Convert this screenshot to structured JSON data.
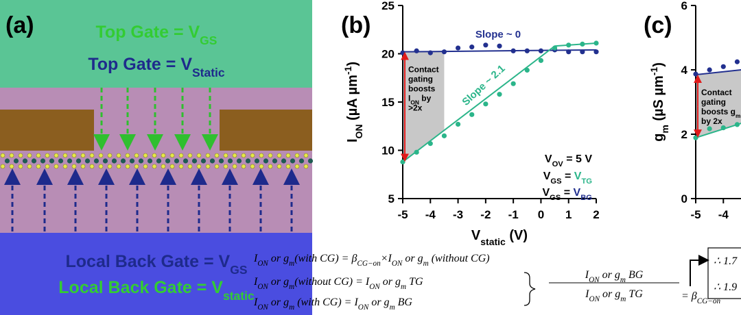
{
  "panel_a": {
    "label": "(a)",
    "top_gate_1": [
      "Top Gate = V",
      "GS"
    ],
    "top_gate_2": [
      "Top Gate = V",
      "Static"
    ],
    "back_gate_1": [
      "Local Back Gate = V",
      "GS"
    ],
    "back_gate_2": [
      "Local Back Gate = V",
      "static"
    ]
  },
  "chart_data": [
    {
      "type": "scatter",
      "label": "(b)",
      "x_label": [
        "V",
        "static",
        " (V)"
      ],
      "y_label": [
        "I",
        "ON",
        " (µA µm",
        "-1",
        ")"
      ],
      "xlim": [
        -5,
        2
      ],
      "ylim": [
        5,
        25
      ],
      "xticks": [
        -5,
        -4,
        -3,
        -2,
        -1,
        0,
        1,
        2
      ],
      "yticks": [
        5,
        10,
        15,
        20,
        25
      ],
      "x": [
        -5,
        -4.5,
        -4,
        -3.5,
        -3,
        -2.5,
        -2,
        -1.5,
        -1,
        -0.5,
        0,
        0.5,
        1,
        1.5,
        2
      ],
      "series": [
        {
          "name": [
            "V",
            "GS",
            " = ",
            "V",
            "BG"
          ],
          "color": "#22308f",
          "values": [
            20.1,
            20.3,
            20.1,
            20.2,
            20.6,
            20.7,
            20.9,
            20.8,
            20.3,
            20.3,
            20.3,
            20.4,
            20.2,
            20.2,
            20.2
          ],
          "fit": {
            "x": [
              -5,
              2
            ],
            "values": [
              20.2,
              20.4
            ]
          }
        },
        {
          "name": [
            "V",
            "GS",
            " = ",
            "V",
            "TG"
          ],
          "color": "#2bb58a",
          "values": [
            8.8,
            9.8,
            10.7,
            11.5,
            12.7,
            13.7,
            14.8,
            15.8,
            16.9,
            18.3,
            19.3,
            20.6,
            20.9,
            21.0,
            21.1
          ],
          "fit": {
            "x": [
              -5,
              0.5,
              2
            ],
            "values": [
              8.8,
              20.8,
              21.1
            ]
          }
        }
      ],
      "shade_to": -3.5,
      "condition": [
        "V",
        "OV",
        " = 5 V"
      ],
      "annotations": {
        "slope_flat": "Slope ~ 0",
        "slope_rise": "Slope ~ 2.1",
        "boost": [
          [
            "Contact"
          ],
          [
            "gating"
          ],
          [
            "boosts"
          ],
          [
            "I",
            "ON",
            " by"
          ],
          [
            ">2x"
          ]
        ]
      }
    },
    {
      "type": "scatter",
      "label": "(c)",
      "y_label": [
        "g",
        "m",
        " (µS µm",
        "-1",
        ")"
      ],
      "xlim": [
        -5,
        2
      ],
      "ylim": [
        0,
        6
      ],
      "xticks": [
        -5,
        -4
      ],
      "yticks": [
        0,
        2,
        4,
        6
      ],
      "x": [
        -5,
        -4.5,
        -4,
        -3.5
      ],
      "series": [
        {
          "color": "#22308f",
          "values": [
            3.87,
            4.0,
            4.1,
            4.25
          ],
          "fit": {
            "x": [
              -5,
              -3.35
            ],
            "values": [
              3.85,
              4.0
            ]
          }
        },
        {
          "color": "#2bb58a",
          "values": [
            1.89,
            2.17,
            2.2,
            2.3
          ],
          "fit": {
            "x": [
              -5,
              -3.35
            ],
            "values": [
              1.89,
              2.34
            ]
          }
        }
      ],
      "shade_to": -3.35,
      "annotations": {
        "boost": [
          [
            "Contact"
          ],
          [
            "gating"
          ],
          [
            "boosts g",
            "m"
          ],
          [
            "by 2x"
          ]
        ]
      }
    }
  ],
  "equations": {
    "eq1": [
      "I",
      "ON",
      " or g",
      "m",
      "(with CG) = β",
      "CG−on",
      "×I",
      "ON",
      " or g",
      "m",
      " (without CG)"
    ],
    "eq2": [
      "I",
      "ON",
      " or g",
      "m",
      "(without CG) = I",
      "ON",
      " or g",
      "m",
      " TG"
    ],
    "eq3": [
      "I",
      "ON",
      " or g",
      "m",
      " (with CG) = I",
      "ON",
      " or g",
      "m",
      " BG"
    ],
    "numerator": [
      "I",
      "ON",
      " or g",
      "m",
      " BG"
    ],
    "denominator": [
      "I",
      "ON",
      " or g",
      "m",
      " TG"
    ],
    "rhs": [
      "= β",
      "CG−on"
    ],
    "result_1": "∴ 1.7",
    "result_2": "∴ 1.9"
  }
}
